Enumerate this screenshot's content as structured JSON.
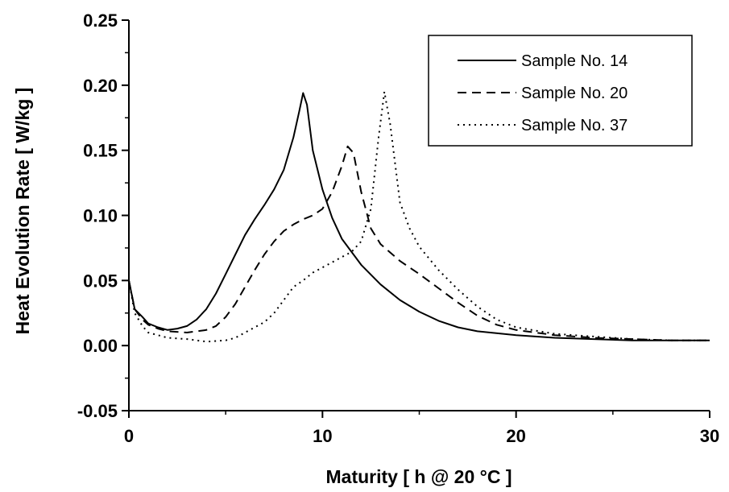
{
  "chart_data": {
    "type": "line",
    "title": "",
    "xlabel": "Maturity [ h @ 20 °C ]",
    "ylabel": "Heat Evolution Rate [ W/kg ]",
    "xlim": [
      0,
      30
    ],
    "ylim": [
      -0.05,
      0.25
    ],
    "x_ticks": [
      "0",
      "10",
      "20",
      "30"
    ],
    "y_ticks": [
      "-0.05",
      "0.00",
      "0.05",
      "0.10",
      "0.15",
      "0.20",
      "0.25"
    ],
    "grid": false,
    "legend_position": "top-right",
    "series": [
      {
        "name": "Sample No. 14",
        "style": "solid",
        "x": [
          0,
          0.3,
          0.7,
          1,
          1.5,
          2,
          2.5,
          3,
          3.5,
          4,
          4.5,
          5,
          5.5,
          6,
          6.5,
          7,
          7.5,
          8,
          8.5,
          8.8,
          9,
          9.2,
          9.5,
          10,
          10.5,
          11,
          12,
          13,
          14,
          15,
          16,
          17,
          18,
          20,
          22,
          24,
          26,
          28,
          30
        ],
        "y": [
          0.05,
          0.028,
          0.022,
          0.017,
          0.014,
          0.012,
          0.013,
          0.015,
          0.02,
          0.028,
          0.04,
          0.055,
          0.07,
          0.085,
          0.097,
          0.108,
          0.12,
          0.135,
          0.16,
          0.18,
          0.194,
          0.185,
          0.15,
          0.12,
          0.098,
          0.082,
          0.062,
          0.047,
          0.035,
          0.026,
          0.019,
          0.014,
          0.011,
          0.008,
          0.006,
          0.005,
          0.004,
          0.004,
          0.004
        ]
      },
      {
        "name": "Sample No. 20",
        "style": "dashed",
        "x": [
          0,
          0.3,
          0.7,
          1,
          1.5,
          2,
          3,
          4,
          4.5,
          5,
          5.5,
          6,
          6.5,
          7,
          7.5,
          8,
          8.5,
          9,
          9.5,
          10,
          10.5,
          11,
          11.3,
          11.6,
          12,
          12.5,
          13,
          14,
          15,
          16,
          17,
          18,
          19,
          20,
          22,
          24,
          26,
          28,
          30
        ],
        "y": [
          0.05,
          0.028,
          0.02,
          0.016,
          0.013,
          0.011,
          0.01,
          0.012,
          0.015,
          0.022,
          0.032,
          0.045,
          0.058,
          0.07,
          0.08,
          0.088,
          0.093,
          0.097,
          0.1,
          0.105,
          0.118,
          0.138,
          0.153,
          0.148,
          0.118,
          0.09,
          0.078,
          0.065,
          0.055,
          0.044,
          0.033,
          0.023,
          0.016,
          0.012,
          0.008,
          0.006,
          0.005,
          0.004,
          0.004
        ]
      },
      {
        "name": "Sample No. 37",
        "style": "dotted",
        "x": [
          0,
          0.3,
          0.7,
          1,
          1.5,
          2,
          3,
          4,
          5,
          5.5,
          6,
          6.5,
          7,
          7.5,
          8,
          8.5,
          9,
          9.5,
          10,
          10.5,
          11,
          11.5,
          12,
          12.5,
          12.9,
          13.2,
          13.5,
          14,
          14.5,
          15,
          16,
          17,
          18,
          19,
          20,
          22,
          24,
          26,
          28,
          30
        ],
        "y": [
          0.05,
          0.025,
          0.015,
          0.01,
          0.008,
          0.006,
          0.005,
          0.003,
          0.004,
          0.006,
          0.01,
          0.014,
          0.018,
          0.025,
          0.035,
          0.045,
          0.05,
          0.056,
          0.06,
          0.064,
          0.068,
          0.072,
          0.08,
          0.105,
          0.16,
          0.195,
          0.17,
          0.11,
          0.09,
          0.076,
          0.058,
          0.043,
          0.03,
          0.02,
          0.014,
          0.009,
          0.007,
          0.005,
          0.004,
          0.004
        ]
      }
    ]
  }
}
